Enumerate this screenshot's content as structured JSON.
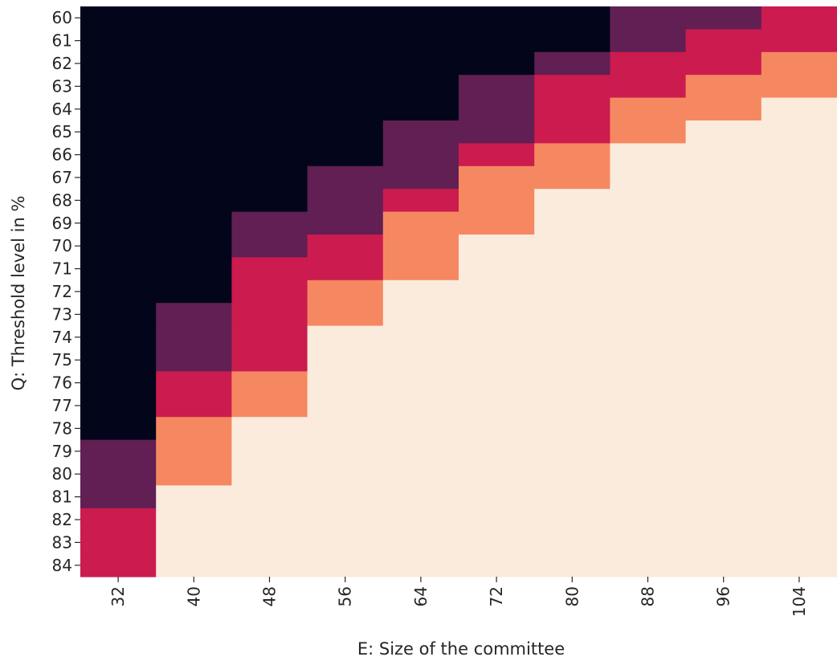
{
  "chart_data": {
    "type": "heatmap",
    "title": "",
    "xlabel": "E: Size of the committee",
    "ylabel": "Q: Threshold level in %",
    "x": [
      32,
      40,
      48,
      56,
      64,
      72,
      80,
      88,
      96,
      104
    ],
    "y": [
      60,
      61,
      62,
      63,
      64,
      65,
      66,
      67,
      68,
      69,
      70,
      71,
      72,
      73,
      74,
      75,
      76,
      77,
      78,
      79,
      80,
      81,
      82,
      83,
      84
    ],
    "color_levels": [
      "#03051a",
      "#611f53",
      "#cb1b4f",
      "#f58860",
      "#faebdd"
    ],
    "level_thresholds": {
      "description_levels": [
        0,
        1,
        2,
        3,
        4
      ]
    },
    "boundaries": [
      {
        "x": 32,
        "levels_by_y_start": [
          [
            60,
            0
          ],
          [
            79,
            1
          ],
          [
            82,
            2
          ]
        ]
      },
      {
        "x": 40,
        "levels_by_y_start": [
          [
            60,
            0
          ],
          [
            73,
            1
          ],
          [
            76,
            2
          ],
          [
            78,
            3
          ],
          [
            81,
            4
          ]
        ]
      },
      {
        "x": 48,
        "levels_by_y_start": [
          [
            60,
            0
          ],
          [
            69,
            1
          ],
          [
            71,
            2
          ],
          [
            76,
            3
          ],
          [
            78,
            4
          ]
        ]
      },
      {
        "x": 56,
        "levels_by_y_start": [
          [
            60,
            0
          ],
          [
            67,
            1
          ],
          [
            70,
            2
          ],
          [
            72,
            3
          ],
          [
            74,
            4
          ]
        ]
      },
      {
        "x": 64,
        "levels_by_y_start": [
          [
            60,
            0
          ],
          [
            65,
            1
          ],
          [
            68,
            2
          ],
          [
            69,
            3
          ],
          [
            72,
            4
          ]
        ]
      },
      {
        "x": 72,
        "levels_by_y_start": [
          [
            60,
            0
          ],
          [
            63,
            1
          ],
          [
            66,
            2
          ],
          [
            67,
            3
          ],
          [
            70,
            4
          ]
        ]
      },
      {
        "x": 80,
        "levels_by_y_start": [
          [
            60,
            0
          ],
          [
            62,
            1
          ],
          [
            63,
            2
          ],
          [
            66,
            3
          ],
          [
            68,
            4
          ]
        ]
      },
      {
        "x": 88,
        "levels_by_y_start": [
          [
            60,
            1
          ],
          [
            62,
            2
          ],
          [
            64,
            3
          ],
          [
            66,
            4
          ]
        ]
      },
      {
        "x": 96,
        "levels_by_y_start": [
          [
            60,
            1
          ],
          [
            61,
            2
          ],
          [
            63,
            3
          ],
          [
            65,
            4
          ]
        ]
      },
      {
        "x": 104,
        "levels_by_y_start": [
          [
            60,
            2
          ],
          [
            62,
            3
          ],
          [
            64,
            4
          ]
        ]
      }
    ],
    "colorbar": false,
    "grid": false
  }
}
